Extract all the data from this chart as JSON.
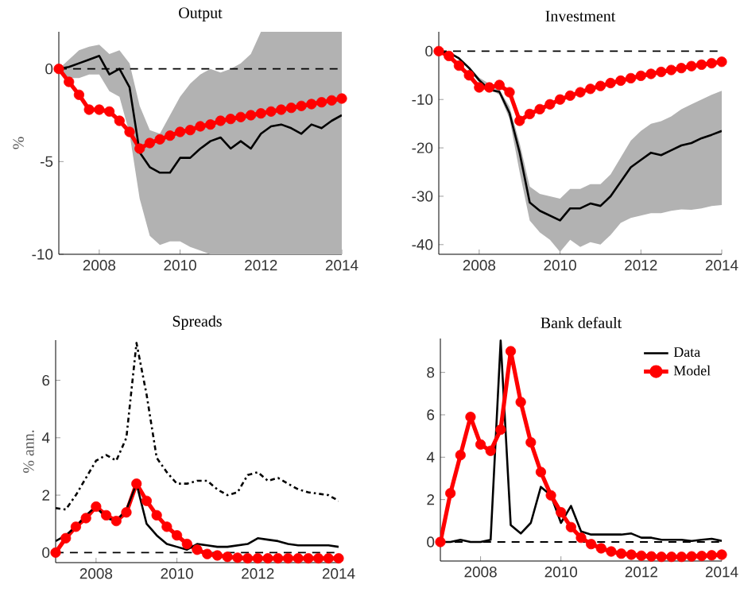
{
  "chart_data": [
    {
      "type": "line",
      "title": "Output",
      "ylabel": "%",
      "x": [
        2007,
        2007.25,
        2007.5,
        2007.75,
        2008,
        2008.25,
        2008.5,
        2008.75,
        2009,
        2009.25,
        2009.5,
        2009.75,
        2010,
        2010.25,
        2010.5,
        2010.75,
        2011,
        2011.25,
        2011.5,
        2011.75,
        2012,
        2012.25,
        2012.5,
        2012.75,
        2013,
        2013.25,
        2013.5,
        2013.75,
        2014
      ],
      "xlim": [
        2007,
        2014
      ],
      "xticks": [
        2008,
        2010,
        2012,
        2014
      ],
      "ylim": [
        -10,
        2
      ],
      "yticks": [
        -10,
        -5,
        0
      ],
      "series": [
        {
          "color": "#ff0000",
          "marker": "circle",
          "line_style": "solid",
          "values": [
            0,
            -0.7,
            -1.4,
            -2.2,
            -2.2,
            -2.3,
            -2.8,
            -3.4,
            -4.3,
            -4.0,
            -3.8,
            -3.6,
            -3.4,
            -3.3,
            -3.1,
            -3.0,
            -2.8,
            -2.7,
            -2.6,
            -2.5,
            -2.4,
            -2.3,
            -2.2,
            -2.1,
            -2.0,
            -1.9,
            -1.8,
            -1.7,
            -1.6
          ]
        },
        {
          "color": "#000000",
          "marker": "none",
          "line_style": "solid",
          "values": [
            0,
            0.1,
            0.3,
            0.5,
            0.7,
            -0.3,
            0,
            -1,
            -4.5,
            -5.3,
            -5.6,
            -5.6,
            -4.8,
            -4.8,
            -4.3,
            -3.9,
            -3.7,
            -4.3,
            -3.9,
            -4.3,
            -3.5,
            -3.1,
            -3.0,
            -3.2,
            -3.5,
            -3.0,
            -3.2,
            -2.8,
            -2.5
          ],
          "upper": [
            0,
            0.5,
            1,
            1.2,
            1.3,
            0.8,
            1.0,
            0.3,
            -2.0,
            -3.3,
            -3.5,
            -2.5,
            -1.5,
            -0.8,
            -0.3,
            0,
            -0.2,
            0,
            0.3,
            0.8,
            2,
            2,
            2,
            2,
            2,
            2,
            2,
            2,
            2
          ],
          "lower": [
            0,
            -0.5,
            -0.5,
            -0.3,
            -0.3,
            -1.2,
            -1.5,
            -3.5,
            -7,
            -9,
            -9.5,
            -9.3,
            -9.3,
            -9.6,
            -9.8,
            -10,
            -10,
            -10,
            -10,
            -10,
            -10,
            -10,
            -10,
            -10,
            -10,
            -10,
            -10,
            -10,
            -10
          ]
        }
      ],
      "ref_lines": [
        {
          "axis": "y",
          "value": 0,
          "color": "#000000",
          "line_style": "dashed"
        }
      ]
    },
    {
      "type": "line",
      "title": "Investment",
      "x": [
        2007,
        2007.25,
        2007.5,
        2007.75,
        2008,
        2008.25,
        2008.5,
        2008.75,
        2009,
        2009.25,
        2009.5,
        2009.75,
        2010,
        2010.25,
        2010.5,
        2010.75,
        2011,
        2011.25,
        2011.5,
        2011.75,
        2012,
        2012.25,
        2012.5,
        2012.75,
        2013,
        2013.25,
        2013.5,
        2013.75,
        2014
      ],
      "xlim": [
        2007,
        2014
      ],
      "xticks": [
        2008,
        2010,
        2012,
        2014
      ],
      "ylim": [
        -42,
        4
      ],
      "yticks": [
        -40,
        -30,
        -20,
        -10,
        0
      ],
      "series": [
        {
          "color": "#ff0000",
          "marker": "circle",
          "line_style": "solid",
          "values": [
            0,
            -1,
            -3,
            -5,
            -7.5,
            -7.5,
            -7,
            -8.5,
            -14.4,
            -13,
            -12,
            -11,
            -10,
            -9.2,
            -8.5,
            -7.8,
            -7.2,
            -6.6,
            -6.1,
            -5.6,
            -5.1,
            -4.7,
            -4.3,
            -3.9,
            -3.5,
            -3.1,
            -2.8,
            -2.5,
            -2.2
          ]
        },
        {
          "color": "#000000",
          "marker": "none",
          "line_style": "solid",
          "values": [
            0,
            -0.3,
            -1.5,
            -3.5,
            -6,
            -8,
            -8.4,
            -12.8,
            -21,
            -31.3,
            -33,
            -34,
            -35,
            -32.5,
            -32.5,
            -31.5,
            -32,
            -30,
            -27,
            -24,
            -22.5,
            -21,
            -21.5,
            -20.5,
            -19.5,
            -19,
            -18,
            -17.3,
            -16.5
          ],
          "upper": [
            0,
            -0.3,
            -1.5,
            -3.2,
            -5.5,
            null,
            -8,
            -11.5,
            -19,
            -28,
            -29.5,
            -30,
            -30.5,
            -28.5,
            -28.5,
            -27.5,
            -27.5,
            -25.5,
            -22,
            -18.5,
            -16.5,
            -15,
            -14.5,
            -13.5,
            -12,
            -11,
            -10,
            -9,
            -8.2
          ],
          "lower": [
            0,
            -0.3,
            -1.5,
            -3.8,
            -6.5,
            null,
            -9,
            -14,
            -25,
            -35,
            -37.5,
            -39,
            -41.5,
            -39,
            -40.5,
            -39.5,
            -40,
            -38,
            -35.5,
            -34.5,
            -34,
            -33.5,
            -33.5,
            -33,
            -32.7,
            -32.8,
            -32.5,
            -32,
            -31.8
          ]
        }
      ],
      "ref_lines": [
        {
          "axis": "y",
          "value": 0,
          "color": "#000000",
          "line_style": "dashed"
        }
      ]
    },
    {
      "type": "line",
      "title": "Spreads",
      "ylabel": "% ann.",
      "x": [
        2007,
        2007.25,
        2007.5,
        2007.75,
        2008,
        2008.25,
        2008.5,
        2008.75,
        2009,
        2009.25,
        2009.5,
        2009.75,
        2010,
        2010.25,
        2010.5,
        2010.75,
        2011,
        2011.25,
        2011.5,
        2011.75,
        2012,
        2012.25,
        2012.5,
        2012.75,
        2013,
        2013.25,
        2013.5,
        2013.75,
        2014
      ],
      "xlim": [
        2007,
        2014
      ],
      "xticks": [
        2008,
        2010,
        2012,
        2014
      ],
      "ylim": [
        -0.35,
        7.4
      ],
      "yticks": [
        0,
        2,
        4,
        6
      ],
      "series": [
        {
          "color": "#ff0000",
          "marker": "circle",
          "line_style": "solid",
          "values": [
            0,
            0.5,
            0.9,
            1.2,
            1.6,
            1.3,
            1.1,
            1.4,
            2.4,
            1.8,
            1.3,
            0.9,
            0.6,
            0.3,
            0.1,
            -0.05,
            -0.1,
            -0.15,
            -0.18,
            -0.2,
            -0.2,
            -0.2,
            -0.2,
            -0.2,
            -0.2,
            -0.2,
            -0.2,
            -0.2,
            -0.2
          ]
        },
        {
          "color": "#000000",
          "marker": "none",
          "line_style": "dashdot",
          "values": [
            1.55,
            1.5,
            2.0,
            2.6,
            3.2,
            3.4,
            3.2,
            4.0,
            7.3,
            5.5,
            3.3,
            2.8,
            2.4,
            2.4,
            2.5,
            2.5,
            2.2,
            2.0,
            2.1,
            2.7,
            2.8,
            2.5,
            2.6,
            2.4,
            2.2,
            2.1,
            2.05,
            2.0,
            1.8
          ]
        },
        {
          "color": "#000000",
          "marker": "none",
          "line_style": "solid",
          "values": [
            0.4,
            0.6,
            0.9,
            1.3,
            1.6,
            1.2,
            1.1,
            1.5,
            2.4,
            1.0,
            0.6,
            0.3,
            0.2,
            0.1,
            0.3,
            0.25,
            0.2,
            0.2,
            0.25,
            0.3,
            0.5,
            0.45,
            0.4,
            0.3,
            0.25,
            0.25,
            0.25,
            0.25,
            0.2
          ]
        }
      ],
      "ref_lines": [
        {
          "axis": "y",
          "value": 0,
          "color": "#000000",
          "line_style": "dashed"
        }
      ]
    },
    {
      "type": "line",
      "title": "Bank default",
      "x": [
        2007,
        2007.25,
        2007.5,
        2007.75,
        2008,
        2008.25,
        2008.5,
        2008.75,
        2009,
        2009.25,
        2009.5,
        2009.75,
        2010,
        2010.25,
        2010.5,
        2010.75,
        2011,
        2011.25,
        2011.5,
        2011.75,
        2012,
        2012.25,
        2012.5,
        2012.75,
        2013,
        2013.25,
        2013.5,
        2013.75,
        2014
      ],
      "xlim": [
        2007,
        2014
      ],
      "xticks": [
        2008,
        2010,
        2012,
        2014
      ],
      "ylim": [
        -0.9,
        9.6
      ],
      "yticks": [
        0,
        2,
        4,
        6,
        8
      ],
      "legend": "top right",
      "series": [
        {
          "name": "Data",
          "color": "#000000",
          "marker": "none",
          "line_style": "solid",
          "values": [
            0,
            0,
            0.1,
            0,
            0,
            0.1,
            9.5,
            0.8,
            0.4,
            0.9,
            2.6,
            2.2,
            0.9,
            1.7,
            0.5,
            0.35,
            0.35,
            0.35,
            0.35,
            0.4,
            0.2,
            0.2,
            0.1,
            0.1,
            0.1,
            0.05,
            0.1,
            0.15,
            0.05
          ]
        },
        {
          "name": "Model",
          "color": "#ff0000",
          "marker": "circle",
          "line_style": "solid",
          "values": [
            0,
            2.3,
            4.1,
            5.9,
            4.6,
            4.3,
            5.3,
            9.0,
            6.6,
            4.7,
            3.3,
            2.2,
            1.4,
            0.7,
            0.2,
            -0.1,
            -0.3,
            -0.45,
            -0.55,
            -0.6,
            -0.65,
            -0.68,
            -0.7,
            -0.7,
            -0.7,
            -0.68,
            -0.66,
            -0.63,
            -0.6
          ]
        }
      ],
      "ref_lines": [
        {
          "axis": "y",
          "value": 0,
          "color": "#000000",
          "line_style": "dashed"
        }
      ]
    }
  ]
}
